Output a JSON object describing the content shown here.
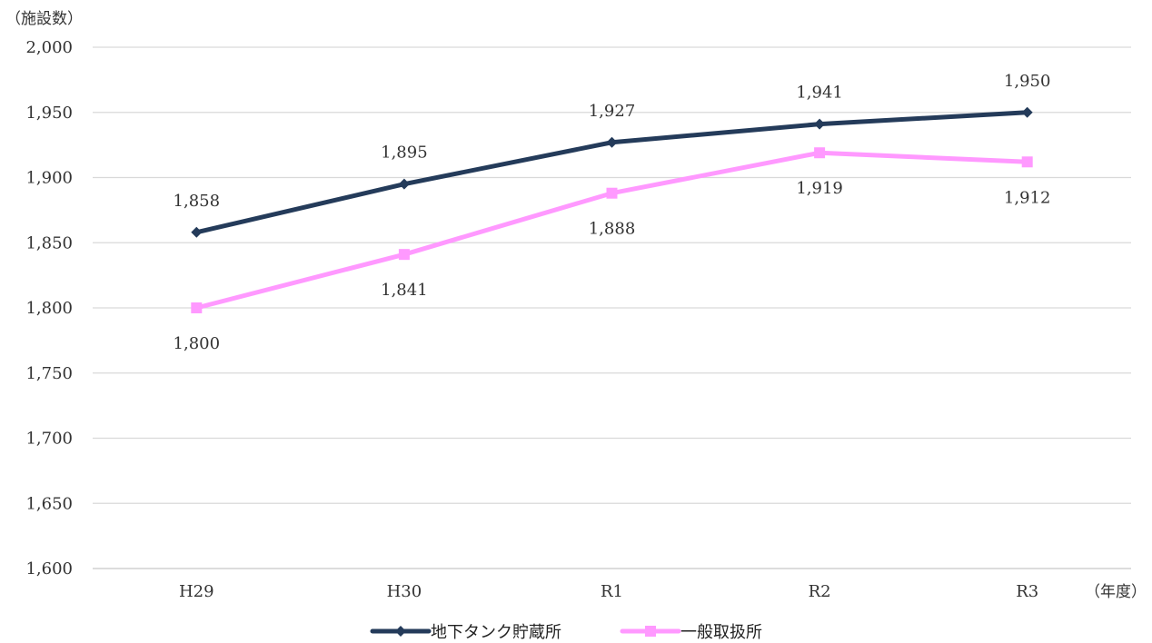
{
  "chart_data": {
    "type": "line",
    "y_unit_label": "（施設数）",
    "x_unit_label": "（年度）",
    "categories": [
      "H29",
      "H30",
      "R1",
      "R2",
      "R3"
    ],
    "ylim": [
      1600,
      2000
    ],
    "ytick_step": 50,
    "yticks": [
      "1,600",
      "1,650",
      "1,700",
      "1,750",
      "1,800",
      "1,850",
      "1,900",
      "1,950",
      "2,000"
    ],
    "grid": true,
    "legend_position": "bottom",
    "series": [
      {
        "name": "地下タンク貯蔵所",
        "values": [
          1858,
          1895,
          1927,
          1941,
          1950
        ],
        "labels": [
          "1,858",
          "1,895",
          "1,927",
          "1,941",
          "1,950"
        ],
        "color": "#243b5a",
        "marker": "diamond",
        "label_position": "above"
      },
      {
        "name": "一般取扱所",
        "values": [
          1800,
          1841,
          1888,
          1919,
          1912
        ],
        "labels": [
          "1,800",
          "1,841",
          "1,888",
          "1,919",
          "1,912"
        ],
        "color": "#ff99ff",
        "marker": "square",
        "label_position": "below"
      }
    ]
  }
}
